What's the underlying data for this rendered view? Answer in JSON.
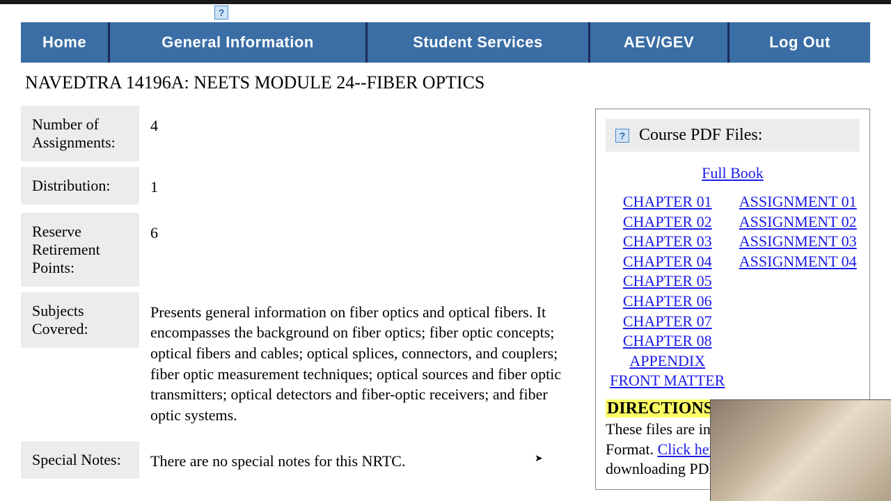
{
  "colors": {
    "nav_bg": "#3a6ea5",
    "nav_divider": "#1a2a5a",
    "label_bg": "#ececec",
    "link": "#1a1ae6",
    "highlight": "#ffff66"
  },
  "nav": {
    "home": "Home",
    "general_info": "General Information",
    "student_services": "Student Services",
    "aev_gev": "AEV/GEV",
    "logout": "Log Out"
  },
  "page_title": "NAVEDTRA 14196A: NEETS MODULE 24--FIBER OPTICS",
  "info": {
    "assignments_label": "Number of Assignments:",
    "assignments_value": "4",
    "distribution_label": "Distribution:",
    "distribution_value": "1",
    "retirement_label": "Reserve Retirement Points:",
    "retirement_value": "6",
    "subjects_label": "Subjects Covered:",
    "subjects_value": "Presents general information on fiber optics and optical fibers. It encompasses the background on fiber optics; fiber optic concepts; optical fibers and cables; optical splices, connectors, and couplers; fiber optic measurement techniques; optical sources and fiber optic transmitters; optical detectors and fiber-optic receivers; and fiber optic systems.",
    "special_label": "Special Notes:",
    "special_value": "There are no special notes for this NRTC."
  },
  "sidebar": {
    "header": "Course PDF Files:",
    "full_book": "Full Book",
    "chapters": [
      "CHAPTER 01",
      "CHAPTER 02",
      "CHAPTER 03",
      "CHAPTER 04",
      "CHAPTER 05",
      "CHAPTER 06",
      "CHAPTER 07",
      "CHAPTER 08",
      "APPENDIX",
      "FRONT MATTER"
    ],
    "assignments": [
      "ASSIGNMENT 01",
      "ASSIGNMENT 02",
      "ASSIGNMENT 03",
      "ASSIGNMENT 04"
    ],
    "directions_label": "DIRECTIONS",
    "directions_prefix": "These files are in Portable Document Format. ",
    "click_here": "Click here",
    "directions_suffix": " for directions on downloading PDF files."
  },
  "help_icon_char": "?"
}
